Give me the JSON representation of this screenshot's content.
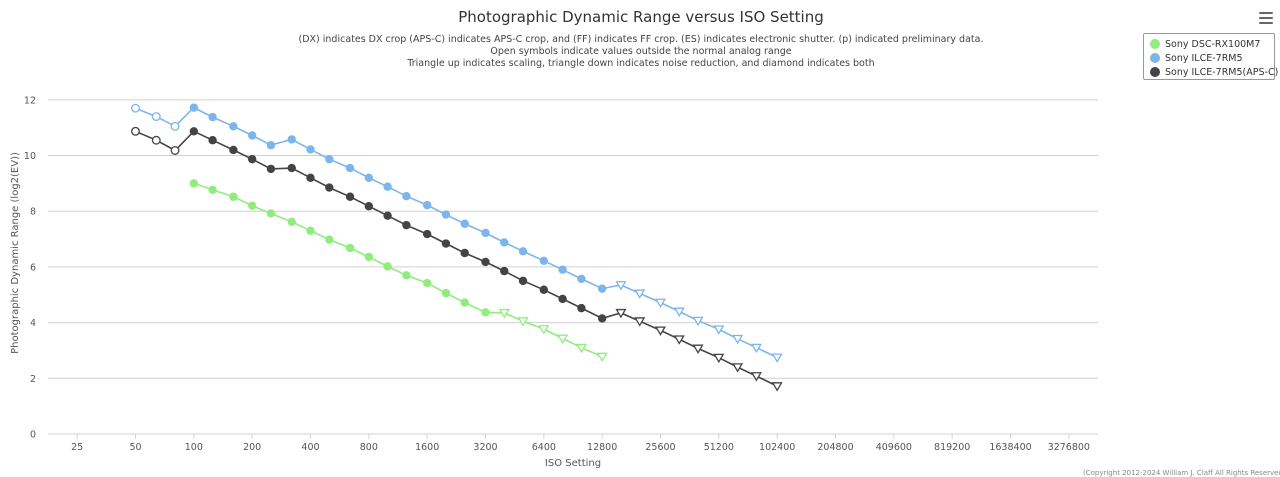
{
  "menu_icon": "hamburger-menu-icon",
  "credits": "(Copyright 2012-2024 William J. Claff All Rights Reserved",
  "chart_data": {
    "type": "line",
    "title": "Photographic Dynamic Range versus ISO Setting",
    "subtitle": [
      "(DX) indicates DX crop (APS-C) indicates APS-C crop, and (FF) indicates FF crop. (ES) indicates electronic shutter. (p) indicated preliminary data.",
      "Open symbols indicate values outside the normal analog range",
      "Triangle up indicates scaling, triangle down indicates noise reduction, and diamond indicates both"
    ],
    "xlabel": "ISO Setting",
    "ylabel": "Photographic Dynamic Range (log2(EV))",
    "x_scale": "log2",
    "x_ticks": [
      25,
      50,
      100,
      200,
      400,
      800,
      1600,
      3200,
      6400,
      12800,
      25600,
      51200,
      102400,
      204800,
      409600,
      819200,
      1638400,
      3276800
    ],
    "ylim": [
      0,
      13
    ],
    "y_ticks": [
      0,
      2,
      4,
      6,
      8,
      10,
      12
    ],
    "grid": "horizontal",
    "legend_position": "top-right",
    "series": [
      {
        "name": "Sony DSC-RX100M7",
        "color": "#90ed7d",
        "points": [
          {
            "x": 100,
            "y": 9.0,
            "m": "filled"
          },
          {
            "x": 125,
            "y": 8.77,
            "m": "filled"
          },
          {
            "x": 160,
            "y": 8.52,
            "m": "filled"
          },
          {
            "x": 200,
            "y": 8.2,
            "m": "filled"
          },
          {
            "x": 250,
            "y": 7.92,
            "m": "filled"
          },
          {
            "x": 320,
            "y": 7.62,
            "m": "filled"
          },
          {
            "x": 400,
            "y": 7.3,
            "m": "filled"
          },
          {
            "x": 500,
            "y": 6.98,
            "m": "filled"
          },
          {
            "x": 640,
            "y": 6.68,
            "m": "filled"
          },
          {
            "x": 800,
            "y": 6.36,
            "m": "filled"
          },
          {
            "x": 1000,
            "y": 6.02,
            "m": "filled"
          },
          {
            "x": 1250,
            "y": 5.7,
            "m": "filled"
          },
          {
            "x": 1600,
            "y": 5.42,
            "m": "filled"
          },
          {
            "x": 2000,
            "y": 5.06,
            "m": "filled"
          },
          {
            "x": 2500,
            "y": 4.72,
            "m": "filled"
          },
          {
            "x": 3200,
            "y": 4.37,
            "m": "filled"
          },
          {
            "x": 4000,
            "y": 4.35,
            "m": "tri-down"
          },
          {
            "x": 5000,
            "y": 4.05,
            "m": "tri-down"
          },
          {
            "x": 6400,
            "y": 3.77,
            "m": "tri-down"
          },
          {
            "x": 8000,
            "y": 3.43,
            "m": "tri-down"
          },
          {
            "x": 10000,
            "y": 3.1,
            "m": "tri-down"
          },
          {
            "x": 12800,
            "y": 2.78,
            "m": "tri-down"
          }
        ]
      },
      {
        "name": "Sony ILCE-7RM5",
        "color": "#7cb5ec",
        "points": [
          {
            "x": 50,
            "y": 11.7,
            "m": "open"
          },
          {
            "x": 64,
            "y": 11.4,
            "m": "open"
          },
          {
            "x": 80,
            "y": 11.05,
            "m": "open"
          },
          {
            "x": 100,
            "y": 11.72,
            "m": "filled"
          },
          {
            "x": 125,
            "y": 11.38,
            "m": "filled"
          },
          {
            "x": 160,
            "y": 11.05,
            "m": "filled"
          },
          {
            "x": 200,
            "y": 10.72,
            "m": "filled"
          },
          {
            "x": 250,
            "y": 10.37,
            "m": "filled"
          },
          {
            "x": 320,
            "y": 10.58,
            "m": "filled"
          },
          {
            "x": 400,
            "y": 10.22,
            "m": "filled"
          },
          {
            "x": 500,
            "y": 9.87,
            "m": "filled"
          },
          {
            "x": 640,
            "y": 9.55,
            "m": "filled"
          },
          {
            "x": 800,
            "y": 9.2,
            "m": "filled"
          },
          {
            "x": 1000,
            "y": 8.88,
            "m": "filled"
          },
          {
            "x": 1250,
            "y": 8.54,
            "m": "filled"
          },
          {
            "x": 1600,
            "y": 8.22,
            "m": "filled"
          },
          {
            "x": 2000,
            "y": 7.88,
            "m": "filled"
          },
          {
            "x": 2500,
            "y": 7.55,
            "m": "filled"
          },
          {
            "x": 3200,
            "y": 7.22,
            "m": "filled"
          },
          {
            "x": 4000,
            "y": 6.88,
            "m": "filled"
          },
          {
            "x": 5000,
            "y": 6.56,
            "m": "filled"
          },
          {
            "x": 6400,
            "y": 6.22,
            "m": "filled"
          },
          {
            "x": 8000,
            "y": 5.9,
            "m": "filled"
          },
          {
            "x": 10000,
            "y": 5.57,
            "m": "filled"
          },
          {
            "x": 12800,
            "y": 5.22,
            "m": "filled"
          },
          {
            "x": 16000,
            "y": 5.35,
            "m": "tri-down"
          },
          {
            "x": 20000,
            "y": 5.05,
            "m": "tri-down"
          },
          {
            "x": 25600,
            "y": 4.72,
            "m": "tri-down"
          },
          {
            "x": 32000,
            "y": 4.4,
            "m": "tri-down"
          },
          {
            "x": 40000,
            "y": 4.07,
            "m": "tri-down"
          },
          {
            "x": 51200,
            "y": 3.76,
            "m": "tri-down"
          },
          {
            "x": 64000,
            "y": 3.42,
            "m": "tri-down"
          },
          {
            "x": 80000,
            "y": 3.1,
            "m": "tri-down"
          },
          {
            "x": 102400,
            "y": 2.75,
            "m": "tri-down"
          }
        ]
      },
      {
        "name": "Sony ILCE-7RM5(APS-C)",
        "color": "#434348",
        "points": [
          {
            "x": 50,
            "y": 10.87,
            "m": "open"
          },
          {
            "x": 64,
            "y": 10.55,
            "m": "open"
          },
          {
            "x": 80,
            "y": 10.18,
            "m": "open"
          },
          {
            "x": 100,
            "y": 10.87,
            "m": "filled"
          },
          {
            "x": 125,
            "y": 10.55,
            "m": "filled"
          },
          {
            "x": 160,
            "y": 10.2,
            "m": "filled"
          },
          {
            "x": 200,
            "y": 9.87,
            "m": "filled"
          },
          {
            "x": 250,
            "y": 9.52,
            "m": "filled"
          },
          {
            "x": 320,
            "y": 9.55,
            "m": "filled"
          },
          {
            "x": 400,
            "y": 9.2,
            "m": "filled"
          },
          {
            "x": 500,
            "y": 8.85,
            "m": "filled"
          },
          {
            "x": 640,
            "y": 8.52,
            "m": "filled"
          },
          {
            "x": 800,
            "y": 8.18,
            "m": "filled"
          },
          {
            "x": 1000,
            "y": 7.84,
            "m": "filled"
          },
          {
            "x": 1250,
            "y": 7.5,
            "m": "filled"
          },
          {
            "x": 1600,
            "y": 7.18,
            "m": "filled"
          },
          {
            "x": 2000,
            "y": 6.84,
            "m": "filled"
          },
          {
            "x": 2500,
            "y": 6.5,
            "m": "filled"
          },
          {
            "x": 3200,
            "y": 6.18,
            "m": "filled"
          },
          {
            "x": 4000,
            "y": 5.85,
            "m": "filled"
          },
          {
            "x": 5000,
            "y": 5.5,
            "m": "filled"
          },
          {
            "x": 6400,
            "y": 5.18,
            "m": "filled"
          },
          {
            "x": 8000,
            "y": 4.85,
            "m": "filled"
          },
          {
            "x": 10000,
            "y": 4.52,
            "m": "filled"
          },
          {
            "x": 12800,
            "y": 4.15,
            "m": "filled"
          },
          {
            "x": 16000,
            "y": 4.35,
            "m": "tri-down"
          },
          {
            "x": 20000,
            "y": 4.05,
            "m": "tri-down"
          },
          {
            "x": 25600,
            "y": 3.72,
            "m": "tri-down"
          },
          {
            "x": 32000,
            "y": 3.4,
            "m": "tri-down"
          },
          {
            "x": 40000,
            "y": 3.07,
            "m": "tri-down"
          },
          {
            "x": 51200,
            "y": 2.74,
            "m": "tri-down"
          },
          {
            "x": 64000,
            "y": 2.4,
            "m": "tri-down"
          },
          {
            "x": 80000,
            "y": 2.08,
            "m": "tri-down"
          },
          {
            "x": 102400,
            "y": 1.72,
            "m": "tri-down"
          }
        ]
      }
    ]
  }
}
